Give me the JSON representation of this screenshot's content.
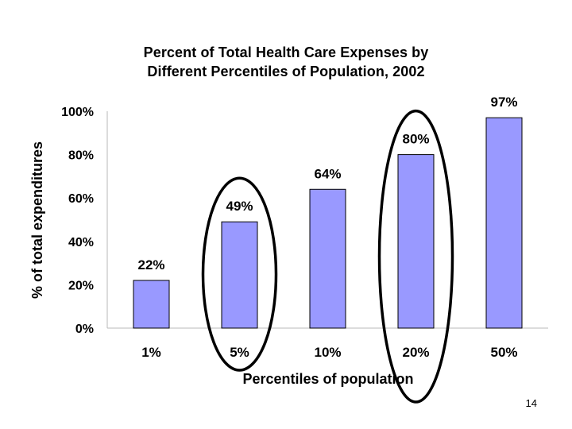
{
  "slide": {
    "page_number": "14"
  },
  "chart_data": {
    "type": "bar",
    "title_lines": [
      "Percent of Total Health Care Expenses by",
      "Different Percentiles of Population, 2002"
    ],
    "xlabel": "Percentiles of population",
    "ylabel": "% of total expenditures",
    "categories": [
      "1%",
      "5%",
      "10%",
      "20%",
      "50%"
    ],
    "values": [
      22,
      49,
      64,
      80,
      97
    ],
    "value_labels": [
      "22%",
      "49%",
      "64%",
      "80%",
      "97%"
    ],
    "yticks": [
      0,
      20,
      40,
      60,
      80,
      100
    ],
    "ytick_labels": [
      "0%",
      "20%",
      "40%",
      "60%",
      "80%",
      "100%"
    ],
    "ylim": [
      0,
      100
    ],
    "grid": false,
    "bar_color": "#9999ff",
    "bar_edge_color": "#000000",
    "highlighted_categories": [
      "5%",
      "20%"
    ],
    "highlight_color": "#000000"
  }
}
